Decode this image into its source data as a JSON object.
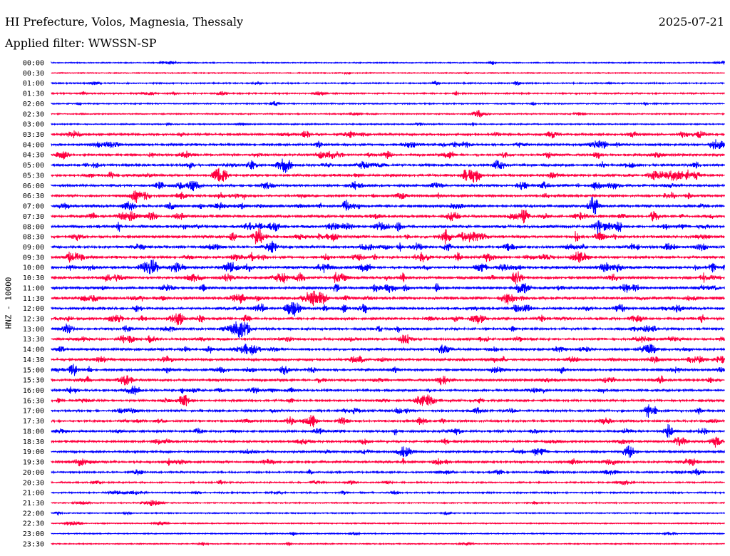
{
  "header": {
    "station": "HI Prefecture, Volos, Magnesia, Thessaly",
    "date": "2025-07-21",
    "filter": "Applied filter: WWSSN-SP"
  },
  "chart_data": {
    "type": "line",
    "ylabel": "HNZ - 10000",
    "row_labels": [
      "00:00",
      "00:30",
      "01:00",
      "01:30",
      "02:00",
      "02:30",
      "03:00",
      "03:30",
      "04:00",
      "04:30",
      "05:00",
      "05:30",
      "06:00",
      "06:30",
      "07:00",
      "07:30",
      "08:00",
      "08:30",
      "09:00",
      "09:30",
      "10:00",
      "10:30",
      "11:00",
      "11:30",
      "12:00",
      "12:30",
      "13:00",
      "13:30",
      "14:00",
      "14:30",
      "15:00",
      "15:30",
      "16:00",
      "16:30",
      "17:00",
      "17:30",
      "18:00",
      "18:30",
      "19:00",
      "19:30",
      "20:00",
      "20:30",
      "21:00",
      "21:30",
      "22:00",
      "22:30",
      "23:00",
      "23:30"
    ],
    "series_colors": [
      "#0000ff",
      "#ff0040"
    ],
    "activity": [
      0.15,
      0.12,
      0.25,
      0.3,
      0.2,
      0.2,
      0.2,
      0.6,
      0.7,
      0.7,
      0.7,
      0.8,
      0.7,
      0.7,
      0.8,
      0.8,
      0.9,
      0.9,
      0.8,
      0.8,
      0.9,
      0.8,
      0.8,
      0.9,
      0.8,
      0.8,
      0.7,
      0.7,
      0.7,
      0.7,
      0.7,
      0.7,
      0.6,
      0.6,
      0.6,
      0.6,
      0.6,
      0.6,
      0.6,
      0.6,
      0.4,
      0.3,
      0.3,
      0.2,
      0.15,
      0.15,
      0.15,
      0.15
    ],
    "grid": false
  }
}
